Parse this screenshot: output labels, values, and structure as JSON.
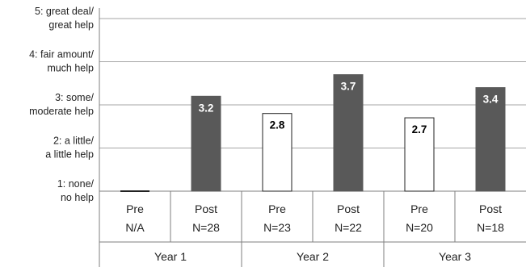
{
  "chart_data": {
    "type": "bar",
    "ylim": [
      1,
      5
    ],
    "grid": true,
    "y_ticks": [
      {
        "value": 5,
        "lines": [
          "5: great deal/",
          "great help"
        ]
      },
      {
        "value": 4,
        "lines": [
          "4: fair amount/",
          "much help"
        ]
      },
      {
        "value": 3,
        "lines": [
          "3: some/",
          "moderate help"
        ]
      },
      {
        "value": 2,
        "lines": [
          "2: a little/",
          "a little help"
        ]
      },
      {
        "value": 1,
        "lines": [
          "1: none/",
          "no help"
        ]
      }
    ],
    "groups": [
      {
        "label": "Year 1",
        "bars": [
          {
            "phase": "Pre",
            "n": "N/A",
            "value": null,
            "label": ""
          },
          {
            "phase": "Post",
            "n": "N=28",
            "value": 3.2,
            "label": "3.2"
          }
        ]
      },
      {
        "label": "Year 2",
        "bars": [
          {
            "phase": "Pre",
            "n": "N=23",
            "value": 2.8,
            "label": "2.8"
          },
          {
            "phase": "Post",
            "n": "N=22",
            "value": 3.7,
            "label": "3.7"
          }
        ]
      },
      {
        "label": "Year 3",
        "bars": [
          {
            "phase": "Pre",
            "n": "N=20",
            "value": 2.7,
            "label": "2.7"
          },
          {
            "phase": "Post",
            "n": "N=18",
            "value": 3.4,
            "label": "3.4"
          }
        ]
      }
    ],
    "colors": {
      "pre_fill": "#ffffff",
      "pre_stroke": "#222222",
      "post_fill": "#595959",
      "grid": "#a6a6a6",
      "axis": "#7f7f7f"
    }
  }
}
